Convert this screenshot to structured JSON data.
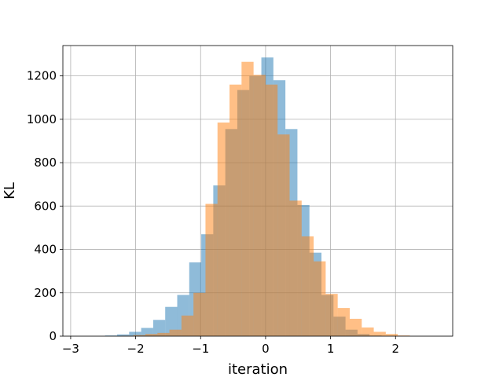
{
  "chart_data": {
    "type": "bar",
    "title": "",
    "xlabel": "iteration",
    "ylabel": "KL",
    "xlim": [
      -3.12,
      2.88
    ],
    "ylim": [
      0,
      1340
    ],
    "xticks": [
      -3,
      -2,
      -1,
      0,
      1,
      2
    ],
    "yticks": [
      0,
      200,
      400,
      600,
      800,
      1000,
      1200
    ],
    "grid": true,
    "legend": "none",
    "series": [
      {
        "color": "#1f77b4",
        "opacity": 0.5,
        "bin_edges": [
          -2.47,
          -2.285,
          -2.1,
          -1.915,
          -1.73,
          -1.545,
          -1.36,
          -1.175,
          -0.99,
          -0.805,
          -0.62,
          -0.435,
          -0.25,
          -0.065,
          0.12,
          0.305,
          0.49,
          0.675,
          0.86,
          1.045,
          1.23,
          1.415,
          1.6,
          1.785
        ],
        "counts": [
          3,
          8,
          20,
          38,
          75,
          135,
          190,
          340,
          470,
          695,
          955,
          1135,
          1200,
          1285,
          1180,
          955,
          605,
          385,
          190,
          90,
          30,
          10,
          3
        ]
      },
      {
        "color": "#ff7f0e",
        "opacity": 0.5,
        "bin_edges": [
          -2.22,
          -2.035,
          -1.85,
          -1.665,
          -1.48,
          -1.295,
          -1.11,
          -0.925,
          -0.74,
          -0.555,
          -0.37,
          -0.185,
          0.0,
          0.185,
          0.37,
          0.555,
          0.74,
          0.925,
          1.11,
          1.295,
          1.48,
          1.665,
          1.85,
          2.035,
          2.22
        ],
        "counts": [
          2,
          5,
          10,
          15,
          30,
          95,
          200,
          610,
          985,
          1160,
          1265,
          1205,
          1160,
          930,
          625,
          460,
          345,
          195,
          130,
          80,
          40,
          20,
          10,
          3
        ]
      }
    ]
  }
}
